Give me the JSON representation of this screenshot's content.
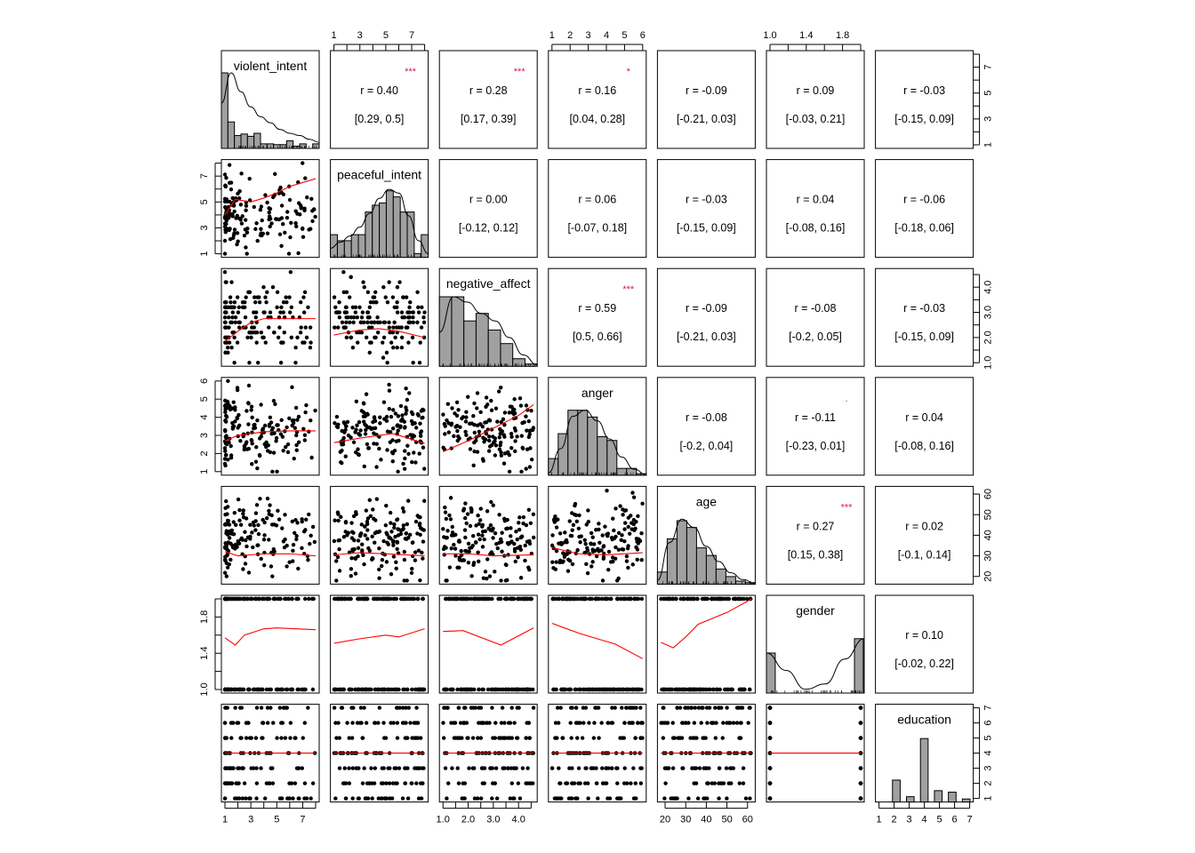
{
  "chart_data": {
    "type": "scatter",
    "title": "",
    "description": "Scatterplot matrix (pairs.panels): histograms with density on diagonal, scatterplots with loess smoothers below diagonal, correlation coefficients with 95% CIs and significance stars above diagonal",
    "variables": [
      {
        "name": "violent_intent",
        "range": [
          1,
          8
        ],
        "ticks": [
          1,
          3,
          5,
          7
        ]
      },
      {
        "name": "peaceful_intent",
        "range": [
          1,
          8
        ],
        "ticks": [
          1,
          3,
          5,
          7
        ]
      },
      {
        "name": "negative_affect",
        "range": [
          1,
          4.6
        ],
        "ticks": [
          1.0,
          2.0,
          3.0,
          4.0
        ]
      },
      {
        "name": "anger",
        "range": [
          1,
          6
        ],
        "ticks": [
          1,
          2,
          3,
          4,
          5,
          6
        ]
      },
      {
        "name": "age",
        "range": [
          18,
          62
        ],
        "ticks": [
          20,
          30,
          40,
          50,
          60
        ]
      },
      {
        "name": "gender",
        "range": [
          1,
          2
        ],
        "ticks": [
          1.0,
          1.4,
          1.8
        ]
      },
      {
        "name": "education",
        "range": [
          1,
          7
        ],
        "ticks": [
          1,
          2,
          3,
          4,
          5,
          6,
          7
        ]
      }
    ],
    "correlations": [
      {
        "row": 0,
        "col": 1,
        "r": "r  = 0.40",
        "ci": "[0.29, 0.5]",
        "stars": "***"
      },
      {
        "row": 0,
        "col": 2,
        "r": "r  = 0.28",
        "ci": "[0.17, 0.39]",
        "stars": "***"
      },
      {
        "row": 0,
        "col": 3,
        "r": "r  = 0.16",
        "ci": "[0.04, 0.28]",
        "stars": "*"
      },
      {
        "row": 0,
        "col": 4,
        "r": "r  = -0.09",
        "ci": "[-0.21, 0.03]",
        "stars": ""
      },
      {
        "row": 0,
        "col": 5,
        "r": "r  = 0.09",
        "ci": "[-0.03, 0.21]",
        "stars": ""
      },
      {
        "row": 0,
        "col": 6,
        "r": "r  = -0.03",
        "ci": "[-0.15, 0.09]",
        "stars": ""
      },
      {
        "row": 1,
        "col": 2,
        "r": "r  = 0.00",
        "ci": "[-0.12, 0.12]",
        "stars": ""
      },
      {
        "row": 1,
        "col": 3,
        "r": "r  = 0.06",
        "ci": "[-0.07, 0.18]",
        "stars": ""
      },
      {
        "row": 1,
        "col": 4,
        "r": "r  = -0.03",
        "ci": "[-0.15, 0.09]",
        "stars": ""
      },
      {
        "row": 1,
        "col": 5,
        "r": "r  = 0.04",
        "ci": "[-0.08, 0.16]",
        "stars": ""
      },
      {
        "row": 1,
        "col": 6,
        "r": "r  = -0.06",
        "ci": "[-0.18, 0.06]",
        "stars": ""
      },
      {
        "row": 2,
        "col": 3,
        "r": "r  = 0.59",
        "ci": "[0.5, 0.66]",
        "stars": "***"
      },
      {
        "row": 2,
        "col": 4,
        "r": "r  = -0.09",
        "ci": "[-0.21, 0.03]",
        "stars": ""
      },
      {
        "row": 2,
        "col": 5,
        "r": "r  = -0.08",
        "ci": "[-0.2, 0.05]",
        "stars": ""
      },
      {
        "row": 2,
        "col": 6,
        "r": "r  = -0.03",
        "ci": "[-0.15, 0.09]",
        "stars": ""
      },
      {
        "row": 3,
        "col": 4,
        "r": "r  = -0.08",
        "ci": "[-0.2, 0.04]",
        "stars": ""
      },
      {
        "row": 3,
        "col": 5,
        "r": "r  = -0.11",
        "ci": "[-0.23, 0.01]",
        "stars": "."
      },
      {
        "row": 3,
        "col": 6,
        "r": "r  = 0.04",
        "ci": "[-0.08, 0.16]",
        "stars": ""
      },
      {
        "row": 4,
        "col": 5,
        "r": "r  = 0.27",
        "ci": "[0.15, 0.38]",
        "stars": "***"
      },
      {
        "row": 4,
        "col": 6,
        "r": "r  = 0.02",
        "ci": "[-0.1, 0.14]",
        "stars": ""
      },
      {
        "row": 5,
        "col": 6,
        "r": "r  = 0.10",
        "ci": "[-0.02, 0.22]",
        "stars": ""
      }
    ],
    "histograms": [
      {
        "var": "violent_intent",
        "heights": [
          1.0,
          0.35,
          0.17,
          0.19,
          0.16,
          0.2,
          0.06,
          0.06,
          0.05,
          0.05,
          0.1,
          0.03,
          0.06,
          0.0,
          0.06
        ],
        "density": [
          0.6,
          1.0,
          0.75,
          0.55,
          0.42,
          0.34,
          0.25,
          0.2,
          0.17,
          0.12,
          0.08
        ]
      },
      {
        "var": "peaceful_intent",
        "heights": [
          0.3,
          0.22,
          0.22,
          0.3,
          0.3,
          0.6,
          0.69,
          0.72,
          0.88,
          0.8,
          0.6,
          0.6,
          0.05,
          0.3
        ],
        "density": [
          0.12,
          0.2,
          0.28,
          0.4,
          0.58,
          0.78,
          0.9,
          0.85,
          0.55,
          0.22,
          0.05
        ]
      },
      {
        "var": "negative_affect",
        "heights": [
          0.92,
          0.92,
          0.6,
          0.7,
          0.48,
          0.3,
          0.1,
          0.03
        ],
        "density": [
          0.45,
          0.92,
          0.85,
          0.7,
          0.6,
          0.38,
          0.15,
          0.02
        ]
      },
      {
        "var": "anger",
        "heights": [
          0.22,
          0.55,
          0.86,
          0.86,
          0.77,
          0.51,
          0.46,
          0.09,
          0.09,
          0.02
        ],
        "density": [
          0.03,
          0.35,
          0.78,
          0.86,
          0.72,
          0.48,
          0.24,
          0.08,
          0.01
        ]
      },
      {
        "var": "age",
        "heights": [
          0.16,
          0.6,
          0.84,
          0.75,
          0.48,
          0.38,
          0.2,
          0.1,
          0.04,
          0.02
        ],
        "density": [
          0.05,
          0.55,
          0.86,
          0.75,
          0.5,
          0.3,
          0.15,
          0.06,
          0.01
        ]
      },
      {
        "var": "gender",
        "heights": [
          0.53,
          0.0,
          0.0,
          0.0,
          0.0,
          0.0,
          0.0,
          0.0,
          0.0,
          0.72
        ],
        "density": [
          0.53,
          0.3,
          0.05,
          0.12,
          0.45,
          0.72
        ]
      },
      {
        "var": "education",
        "heights": [
          0.0,
          0.29,
          0.07,
          0.84,
          0.15,
          0.13,
          0.04
        ]
      }
    ],
    "loess_lines": [
      {
        "row": 1,
        "col": 0,
        "points": [
          [
            1,
            4.0
          ],
          [
            1.8,
            5.2
          ],
          [
            3,
            5.0
          ],
          [
            4,
            5.3
          ],
          [
            5,
            5.7
          ],
          [
            6,
            6.2
          ],
          [
            8,
            6.8
          ]
        ]
      },
      {
        "row": 2,
        "col": 0,
        "points": [
          [
            1,
            1.85
          ],
          [
            2,
            2.25
          ],
          [
            3,
            2.6
          ],
          [
            4,
            2.75
          ],
          [
            6,
            2.75
          ],
          [
            8,
            2.75
          ]
        ]
      },
      {
        "row": 2,
        "col": 1,
        "points": [
          [
            1,
            2.1
          ],
          [
            3,
            2.3
          ],
          [
            4.5,
            2.35
          ],
          [
            6,
            2.25
          ],
          [
            8,
            2.0
          ]
        ]
      },
      {
        "row": 3,
        "col": 0,
        "points": [
          [
            1,
            2.7
          ],
          [
            2,
            3.0
          ],
          [
            4,
            3.2
          ],
          [
            6,
            3.25
          ],
          [
            8,
            3.25
          ]
        ]
      },
      {
        "row": 3,
        "col": 1,
        "points": [
          [
            1,
            2.6
          ],
          [
            3,
            2.85
          ],
          [
            5.5,
            3.1
          ],
          [
            6.5,
            2.9
          ],
          [
            8,
            2.55
          ]
        ]
      },
      {
        "row": 3,
        "col": 2,
        "points": [
          [
            1.0,
            2.1
          ],
          [
            2.0,
            2.7
          ],
          [
            3.0,
            3.4
          ],
          [
            4.0,
            4.1
          ],
          [
            4.6,
            4.7
          ]
        ]
      },
      {
        "row": 4,
        "col": 0,
        "points": [
          [
            1,
            32
          ],
          [
            2,
            30
          ],
          [
            4,
            31
          ],
          [
            6,
            31
          ],
          [
            8,
            30
          ]
        ]
      },
      {
        "row": 4,
        "col": 1,
        "points": [
          [
            1,
            30.5
          ],
          [
            3,
            31.5
          ],
          [
            5,
            31
          ],
          [
            8,
            30
          ]
        ]
      },
      {
        "row": 4,
        "col": 2,
        "points": [
          [
            1.0,
            31
          ],
          [
            2.0,
            31
          ],
          [
            3.0,
            30
          ],
          [
            4.6,
            30.5
          ]
        ]
      },
      {
        "row": 4,
        "col": 3,
        "points": [
          [
            1,
            34
          ],
          [
            2.5,
            31
          ],
          [
            4,
            30.5
          ],
          [
            6,
            31.5
          ]
        ]
      },
      {
        "row": 5,
        "col": 0,
        "points": [
          [
            1,
            1.57
          ],
          [
            1.8,
            1.49
          ],
          [
            2.5,
            1.6
          ],
          [
            4,
            1.67
          ],
          [
            5,
            1.68
          ],
          [
            8,
            1.66
          ]
        ]
      },
      {
        "row": 5,
        "col": 1,
        "points": [
          [
            1,
            1.51
          ],
          [
            3,
            1.56
          ],
          [
            5,
            1.6
          ],
          [
            6,
            1.58
          ],
          [
            8,
            1.67
          ]
        ]
      },
      {
        "row": 5,
        "col": 2,
        "points": [
          [
            1.0,
            1.64
          ],
          [
            1.8,
            1.65
          ],
          [
            3.3,
            1.49
          ],
          [
            4.6,
            1.68
          ]
        ]
      },
      {
        "row": 5,
        "col": 3,
        "points": [
          [
            1,
            1.73
          ],
          [
            2.5,
            1.62
          ],
          [
            3.5,
            1.56
          ],
          [
            4.5,
            1.5
          ],
          [
            6,
            1.34
          ]
        ]
      },
      {
        "row": 5,
        "col": 4,
        "points": [
          [
            18,
            1.52
          ],
          [
            24,
            1.46
          ],
          [
            30,
            1.58
          ],
          [
            36,
            1.72
          ],
          [
            50,
            1.85
          ],
          [
            62,
            2.0
          ]
        ]
      },
      {
        "row": 6,
        "col": 0,
        "points": [
          [
            1,
            4
          ],
          [
            8,
            4
          ]
        ]
      },
      {
        "row": 6,
        "col": 1,
        "points": [
          [
            1,
            4
          ],
          [
            8,
            4
          ]
        ]
      },
      {
        "row": 6,
        "col": 2,
        "points": [
          [
            1.0,
            4
          ],
          [
            4.6,
            4
          ]
        ]
      },
      {
        "row": 6,
        "col": 3,
        "points": [
          [
            1,
            4
          ],
          [
            6,
            4
          ]
        ]
      },
      {
        "row": 6,
        "col": 4,
        "points": [
          [
            18,
            4
          ],
          [
            62,
            4
          ]
        ]
      },
      {
        "row": 6,
        "col": 5,
        "points": [
          [
            1,
            4
          ],
          [
            2,
            4
          ]
        ]
      }
    ],
    "axes": {
      "top": [
        {
          "col": 1,
          "var": "peaceful_intent"
        },
        {
          "col": 3,
          "var": "anger"
        },
        {
          "col": 5,
          "var": "gender"
        }
      ],
      "bottom": [
        {
          "col": 0,
          "var": "violent_intent"
        },
        {
          "col": 2,
          "var": "negative_affect"
        },
        {
          "col": 4,
          "var": "age"
        },
        {
          "col": 6,
          "var": "education"
        }
      ],
      "left": [
        {
          "row": 1,
          "var": "peaceful_intent"
        },
        {
          "row": 3,
          "var": "anger"
        },
        {
          "row": 5,
          "var": "gender"
        }
      ],
      "right": [
        {
          "row": 0,
          "var": "violent_intent"
        },
        {
          "row": 2,
          "var": "negative_affect"
        },
        {
          "row": 4,
          "var": "age"
        },
        {
          "row": 6,
          "var": "education"
        }
      ]
    },
    "colors": {
      "loess": "#ff0000",
      "stars": "#e0115f",
      "bars": "#a0a0a0",
      "points": "#000000"
    },
    "grid": false,
    "legend": "none"
  }
}
